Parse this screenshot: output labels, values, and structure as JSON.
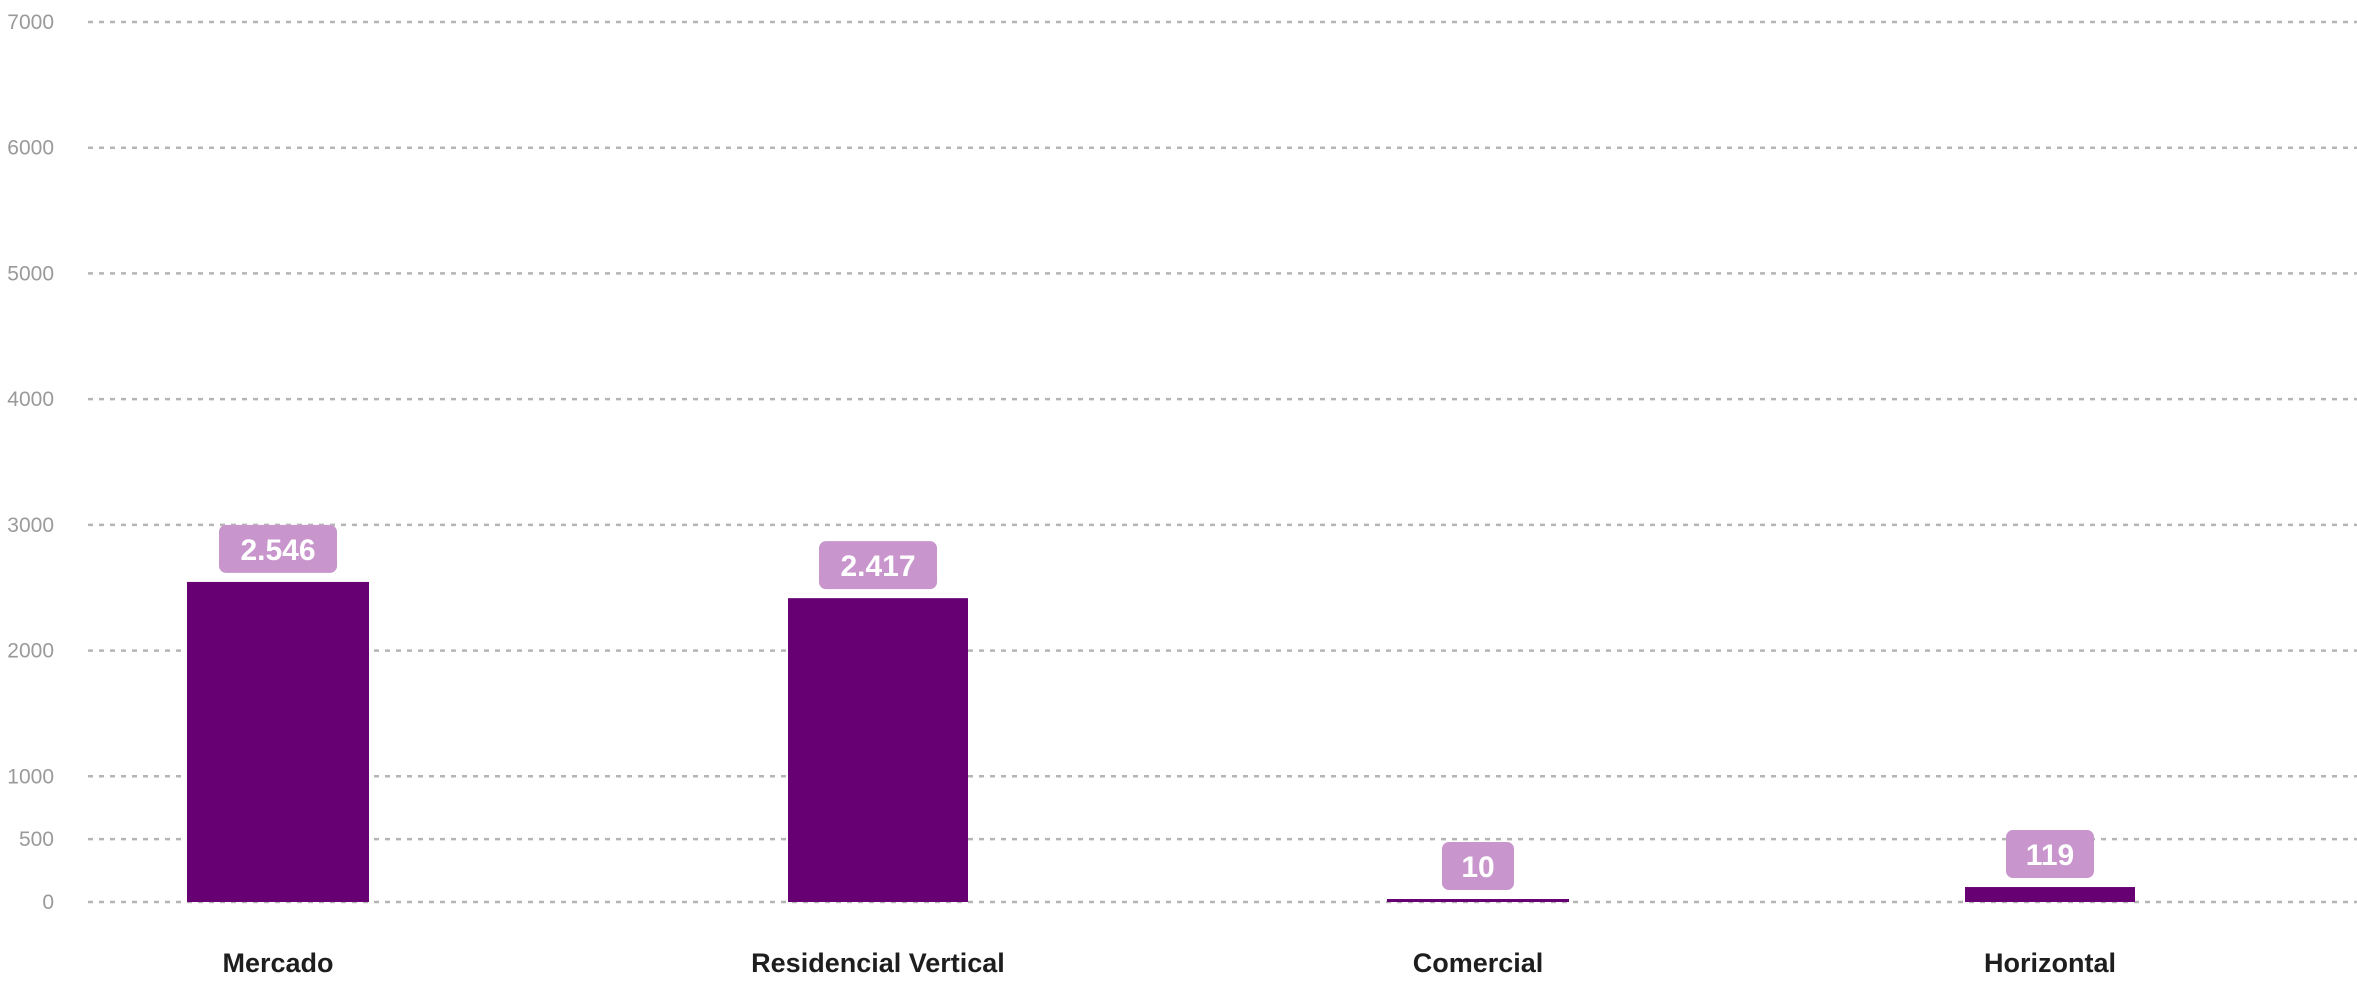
{
  "chart_data": {
    "type": "bar",
    "categories": [
      "Mercado",
      "Residencial Vertical",
      "Comercial",
      "Horizontal"
    ],
    "values": [
      2546,
      2417,
      10,
      119
    ],
    "value_labels": [
      "2.546",
      "2.417",
      "10",
      "119"
    ],
    "y_ticks": [
      0,
      500,
      1000,
      2000,
      3000,
      4000,
      5000,
      6000,
      7000
    ],
    "ylim": [
      0,
      7000
    ],
    "grid": true,
    "legend": "none",
    "bar_color": "#660073",
    "label_bg_color": "#c896cd",
    "title": "",
    "xlabel": "",
    "ylabel": ""
  }
}
